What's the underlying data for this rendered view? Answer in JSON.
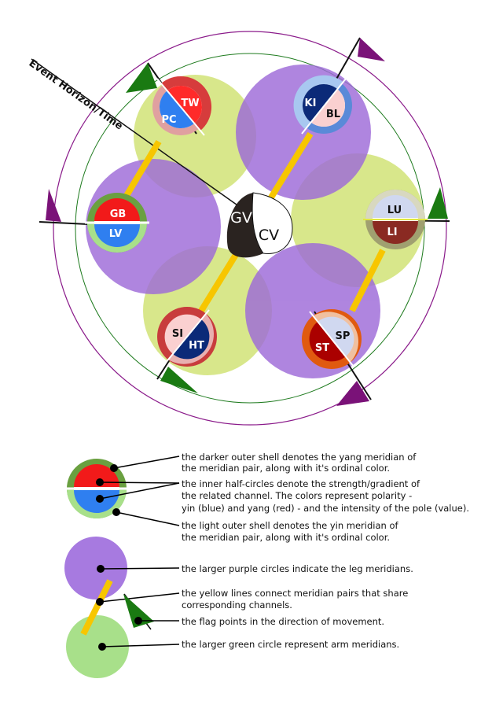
{
  "diagram": {
    "axis_label": "Event Horizon/Time",
    "center_labels": {
      "gv": "GV",
      "cv": "CV"
    },
    "nodes": {
      "tw": "TW",
      "pc": "PC",
      "ki": "KI",
      "bl": "BL",
      "gb": "GB",
      "lv": "LV",
      "lu": "LU",
      "li": "LI",
      "si": "SI",
      "ht": "HT",
      "st": "ST",
      "sp": "SP"
    },
    "colors": {
      "purple": "#a77ae0",
      "green_circle": "#d6e685",
      "yellow_line": "#f7c600",
      "flag_green": "#1a7a12",
      "flag_purple": "#7a1278",
      "outer_ring": "#8a1a8a",
      "inner_ring": "#1d7a1d"
    }
  },
  "legend": {
    "shell_yang": "the darker outer shell denotes the yang meridian of the meridian pair, along with it's ordinal color.",
    "shell_yang_line1": "the darker outer shell denotes the yang meridian of",
    "shell_yang_line2": "the meridian pair, along with it's ordinal color.",
    "inner_line1": "the inner half-circles denote the strength/gradient of",
    "inner_line2": "the related channel. The colors  represent polarity -",
    "inner_line3": "yin (blue) and yang (red) - and the intensity of the pole  (value).",
    "shell_yin_line1": "the light outer shell denotes the yin meridian of",
    "shell_yin_line2": "the meridian pair, along with it's ordinal color.",
    "purple_circles": "the larger purple circles indicate the leg meridians.",
    "yellow_line1": "the yellow lines connect meridian pairs that share",
    "yellow_line2": "corresponding channels.",
    "flag": "the flag points in the direction of movement.",
    "green_circle": "the larger green circle represent arm meridians."
  }
}
